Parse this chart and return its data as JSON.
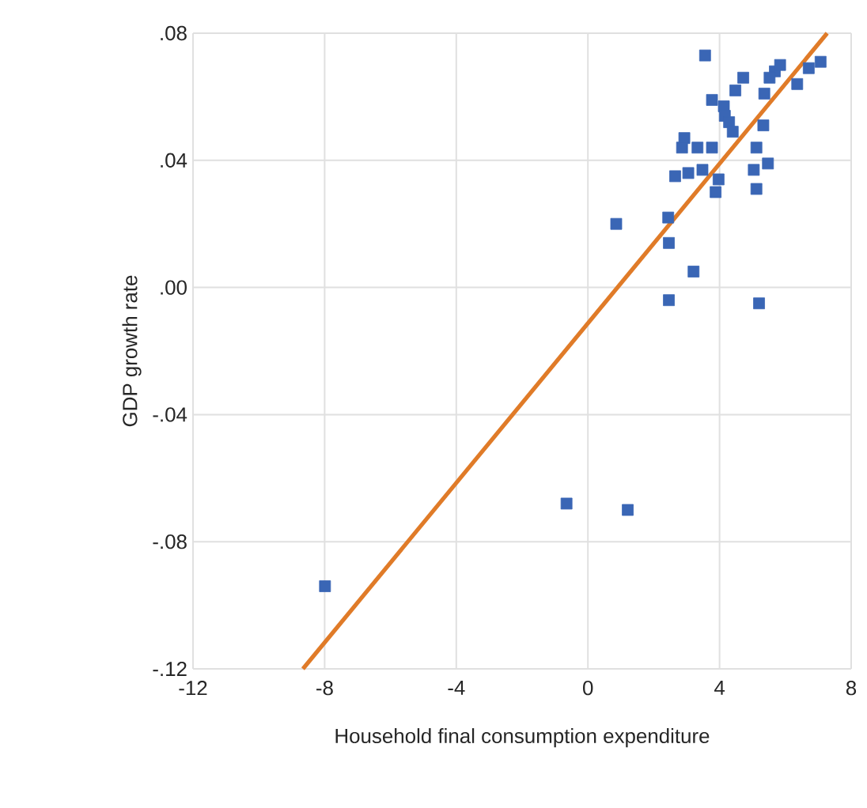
{
  "chart_data": {
    "type": "scatter",
    "xlabel": "Household final consumption expenditure",
    "ylabel": "GDP growth rate",
    "xlim": [
      -12,
      8
    ],
    "ylim": [
      -0.12,
      0.08
    ],
    "xticks": [
      -12,
      -8,
      -4,
      0,
      4,
      8
    ],
    "yticks": [
      {
        "value": -0.12,
        "label": "-.12"
      },
      {
        "value": -0.08,
        "label": "-.08"
      },
      {
        "value": -0.04,
        "label": "-.04"
      },
      {
        "value": 0.0,
        "label": ".00"
      },
      {
        "value": 0.04,
        "label": ".04"
      },
      {
        "value": 0.08,
        "label": ".08"
      }
    ],
    "grid": true,
    "marker": "square",
    "series": [
      {
        "color": "#3a66b5",
        "x": [
          3.56,
          7.07,
          6.71,
          5.68,
          5.84,
          5.52,
          6.36,
          4.72,
          4.48,
          5.36,
          3.77,
          4.13,
          4.16,
          4.29,
          4.4,
          5.33,
          2.93,
          2.86,
          3.33,
          3.77,
          5.12,
          5.47,
          5.04,
          3.48,
          3.05,
          2.65,
          3.97,
          3.88,
          5.12,
          0.86,
          2.44,
          2.46,
          3.21,
          2.46,
          5.2,
          -0.65,
          1.21,
          -7.99
        ],
        "values": [
          0.073,
          0.071,
          0.069,
          0.068,
          0.07,
          0.066,
          0.064,
          0.066,
          0.062,
          0.061,
          0.059,
          0.057,
          0.054,
          0.052,
          0.049,
          0.051,
          0.047,
          0.044,
          0.044,
          0.044,
          0.044,
          0.039,
          0.037,
          0.037,
          0.036,
          0.035,
          0.034,
          0.03,
          0.031,
          0.02,
          0.022,
          0.014,
          0.005,
          -0.004,
          -0.005,
          -0.068,
          -0.07,
          -0.094
        ]
      },
      {
        "type": "line",
        "color": "#e07b28",
        "marker": "none",
        "x": [
          -8.66,
          7.27
        ],
        "values": [
          -0.12,
          0.08
        ]
      }
    ]
  }
}
